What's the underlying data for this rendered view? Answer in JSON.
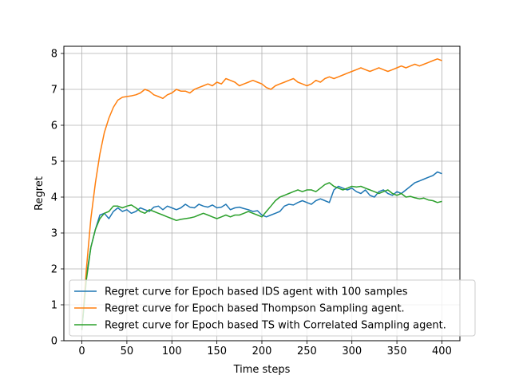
{
  "chart_data": {
    "type": "line",
    "title": "",
    "xlabel": "Time steps",
    "ylabel": "Regret",
    "xlim": [
      -20,
      420
    ],
    "ylim": [
      0,
      8.2
    ],
    "xticks": [
      0,
      50,
      100,
      150,
      200,
      250,
      300,
      350,
      400
    ],
    "yticks": [
      0,
      1,
      2,
      3,
      4,
      5,
      6,
      7,
      8
    ],
    "grid": true,
    "legend_position": "lower-right",
    "series": [
      {
        "name": "Regret curve for Epoch based IDS agent with 100 samples",
        "color": "#1f77b4",
        "x": [
          0,
          5,
          10,
          15,
          20,
          25,
          30,
          35,
          40,
          45,
          50,
          55,
          60,
          65,
          70,
          75,
          80,
          85,
          90,
          95,
          100,
          105,
          110,
          115,
          120,
          125,
          130,
          135,
          140,
          145,
          150,
          155,
          160,
          165,
          170,
          175,
          180,
          185,
          190,
          195,
          200,
          205,
          210,
          215,
          220,
          225,
          230,
          235,
          240,
          245,
          250,
          255,
          260,
          265,
          270,
          275,
          280,
          285,
          290,
          295,
          300,
          305,
          310,
          315,
          320,
          325,
          330,
          335,
          340,
          345,
          350,
          355,
          360,
          365,
          370,
          375,
          380,
          385,
          390,
          395,
          400
        ],
        "y": [
          0.3,
          1.8,
          2.6,
          3.1,
          3.5,
          3.55,
          3.4,
          3.6,
          3.7,
          3.6,
          3.65,
          3.55,
          3.6,
          3.7,
          3.65,
          3.6,
          3.72,
          3.75,
          3.65,
          3.75,
          3.7,
          3.65,
          3.7,
          3.8,
          3.72,
          3.7,
          3.8,
          3.75,
          3.72,
          3.78,
          3.7,
          3.72,
          3.8,
          3.65,
          3.7,
          3.72,
          3.68,
          3.65,
          3.6,
          3.62,
          3.5,
          3.45,
          3.5,
          3.55,
          3.6,
          3.75,
          3.8,
          3.78,
          3.85,
          3.9,
          3.85,
          3.8,
          3.9,
          3.95,
          3.9,
          3.85,
          4.2,
          4.3,
          4.25,
          4.2,
          4.25,
          4.15,
          4.1,
          4.2,
          4.05,
          4.0,
          4.15,
          4.2,
          4.1,
          4.05,
          4.15,
          4.1,
          4.2,
          4.3,
          4.4,
          4.45,
          4.5,
          4.55,
          4.6,
          4.7,
          4.65
        ]
      },
      {
        "name": "Regret curve for Epoch based Thompson Sampling agent.",
        "color": "#ff7f0e",
        "x": [
          0,
          5,
          10,
          15,
          20,
          25,
          30,
          35,
          40,
          45,
          50,
          55,
          60,
          65,
          70,
          75,
          80,
          85,
          90,
          95,
          100,
          105,
          110,
          115,
          120,
          125,
          130,
          135,
          140,
          145,
          150,
          155,
          160,
          165,
          170,
          175,
          180,
          185,
          190,
          195,
          200,
          205,
          210,
          215,
          220,
          225,
          230,
          235,
          240,
          245,
          250,
          255,
          260,
          265,
          270,
          275,
          280,
          285,
          290,
          295,
          300,
          305,
          310,
          315,
          320,
          325,
          330,
          335,
          340,
          345,
          350,
          355,
          360,
          365,
          370,
          375,
          380,
          385,
          390,
          395,
          400
        ],
        "y": [
          0.3,
          2.0,
          3.4,
          4.4,
          5.2,
          5.8,
          6.2,
          6.5,
          6.7,
          6.78,
          6.8,
          6.82,
          6.85,
          6.9,
          7.0,
          6.95,
          6.85,
          6.8,
          6.75,
          6.85,
          6.9,
          7.0,
          6.95,
          6.95,
          6.9,
          7.0,
          7.05,
          7.1,
          7.15,
          7.1,
          7.2,
          7.15,
          7.3,
          7.25,
          7.2,
          7.1,
          7.15,
          7.2,
          7.25,
          7.2,
          7.15,
          7.05,
          7.0,
          7.1,
          7.15,
          7.2,
          7.25,
          7.3,
          7.2,
          7.15,
          7.1,
          7.15,
          7.25,
          7.2,
          7.3,
          7.35,
          7.3,
          7.35,
          7.4,
          7.45,
          7.5,
          7.55,
          7.6,
          7.55,
          7.5,
          7.55,
          7.6,
          7.55,
          7.5,
          7.55,
          7.6,
          7.65,
          7.6,
          7.65,
          7.7,
          7.65,
          7.7,
          7.75,
          7.8,
          7.85,
          7.8
        ]
      },
      {
        "name": "Regret curve for Epoch based TS with Correlated Sampling agent.",
        "color": "#2ca02c",
        "x": [
          0,
          5,
          10,
          15,
          20,
          25,
          30,
          35,
          40,
          45,
          50,
          55,
          60,
          65,
          70,
          75,
          80,
          85,
          90,
          95,
          100,
          105,
          110,
          115,
          120,
          125,
          130,
          135,
          140,
          145,
          150,
          155,
          160,
          165,
          170,
          175,
          180,
          185,
          190,
          195,
          200,
          205,
          210,
          215,
          220,
          225,
          230,
          235,
          240,
          245,
          250,
          255,
          260,
          265,
          270,
          275,
          280,
          285,
          290,
          295,
          300,
          305,
          310,
          315,
          320,
          325,
          330,
          335,
          340,
          345,
          350,
          355,
          360,
          365,
          370,
          375,
          380,
          385,
          390,
          395,
          400
        ],
        "y": [
          0.3,
          1.7,
          2.6,
          3.1,
          3.4,
          3.55,
          3.6,
          3.75,
          3.75,
          3.7,
          3.75,
          3.78,
          3.7,
          3.6,
          3.55,
          3.65,
          3.6,
          3.55,
          3.5,
          3.45,
          3.4,
          3.35,
          3.38,
          3.4,
          3.42,
          3.45,
          3.5,
          3.55,
          3.5,
          3.45,
          3.4,
          3.45,
          3.5,
          3.45,
          3.5,
          3.5,
          3.55,
          3.6,
          3.55,
          3.5,
          3.45,
          3.6,
          3.75,
          3.9,
          4.0,
          4.05,
          4.1,
          4.15,
          4.2,
          4.15,
          4.2,
          4.2,
          4.15,
          4.25,
          4.35,
          4.4,
          4.3,
          4.25,
          4.2,
          4.25,
          4.3,
          4.28,
          4.3,
          4.25,
          4.2,
          4.15,
          4.1,
          4.15,
          4.2,
          4.1,
          4.05,
          4.1,
          4.0,
          4.02,
          3.98,
          3.95,
          3.97,
          3.92,
          3.9,
          3.85,
          3.88
        ]
      }
    ]
  }
}
